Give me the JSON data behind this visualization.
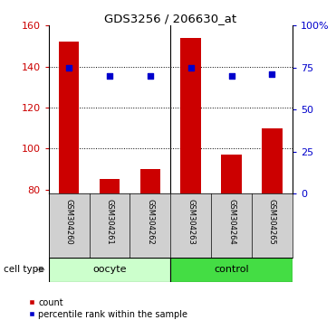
{
  "title": "GDS3256 / 206630_at",
  "samples": [
    "GSM304260",
    "GSM304261",
    "GSM304262",
    "GSM304263",
    "GSM304264",
    "GSM304265"
  ],
  "counts": [
    152,
    85,
    90,
    154,
    97,
    110
  ],
  "percentile_ranks": [
    75,
    70,
    70,
    75,
    70,
    71
  ],
  "ylim_left": [
    78,
    160
  ],
  "ylim_right": [
    0,
    100
  ],
  "yticks_left": [
    80,
    100,
    120,
    140,
    160
  ],
  "yticks_right": [
    0,
    25,
    50,
    75,
    100
  ],
  "ytick_labels_right": [
    "0",
    "25",
    "50",
    "75",
    "100%"
  ],
  "bar_color": "#cc0000",
  "scatter_color": "#0000cc",
  "bar_width": 0.5,
  "xlabel_color": "#cc0000",
  "ylabel_right_color": "#0000cc",
  "oocyte_bg": "#ccffcc",
  "control_bg": "#44dd44",
  "sample_label_bg": "#d0d0d0"
}
